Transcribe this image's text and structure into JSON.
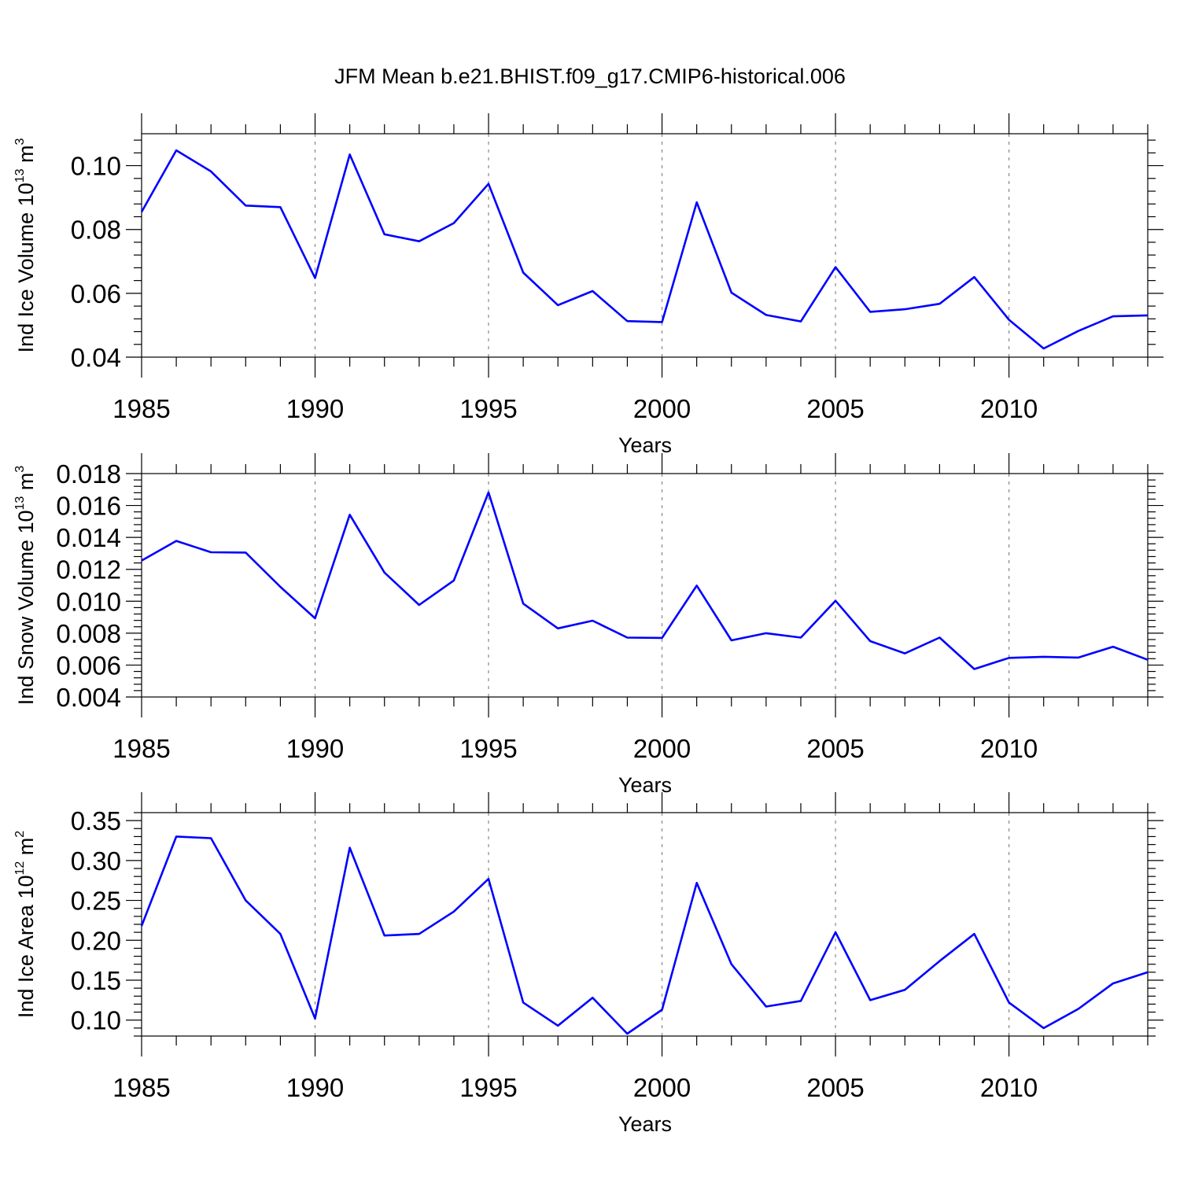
{
  "title": "JFM Mean b.e21.BHIST.f09_g17.CMIP6-historical.006",
  "colors": {
    "line": "#0000ff",
    "axis": "#000000",
    "grid": "#888888"
  },
  "chart_data": [
    {
      "type": "line",
      "ylabel_main": "Ind Ice Volume 10",
      "ylabel_exp": "13",
      "ylabel_unit": " m",
      "ylabel_unit_exp": "3",
      "xlabel": "Years",
      "xlim": [
        1985,
        2014
      ],
      "ylim": [
        0.04,
        0.11
      ],
      "x_ticks": [
        1985,
        1990,
        1995,
        2000,
        2005,
        2010
      ],
      "x_tick_labels": [
        "1985",
        "1990",
        "1995",
        "2000",
        "2005",
        "2010"
      ],
      "y_ticks": [
        0.04,
        0.06,
        0.08,
        0.1
      ],
      "y_tick_labels": [
        "0.04",
        "0.06",
        "0.08",
        "0.10"
      ],
      "x": [
        1985,
        1986,
        1987,
        1988,
        1989,
        1990,
        1991,
        1992,
        1993,
        1994,
        1995,
        1996,
        1997,
        1998,
        1999,
        2000,
        2001,
        2002,
        2003,
        2004,
        2005,
        2006,
        2007,
        2008,
        2009,
        2010,
        2011,
        2012,
        2013,
        2014
      ],
      "series": [
        {
          "name": "Ind Ice Volume",
          "values": [
            0.0855,
            0.1048,
            0.0982,
            0.0875,
            0.087,
            0.0648,
            0.1035,
            0.0785,
            0.0763,
            0.082,
            0.0943,
            0.0665,
            0.0563,
            0.0607,
            0.0513,
            0.051,
            0.0885,
            0.0602,
            0.0532,
            0.0512,
            0.0682,
            0.0542,
            0.055,
            0.0567,
            0.0651,
            0.0517,
            0.0427,
            0.0482,
            0.0528,
            0.0531
          ]
        }
      ]
    },
    {
      "type": "line",
      "ylabel_main": "Ind Snow Volume 10",
      "ylabel_exp": "13",
      "ylabel_unit": " m",
      "ylabel_unit_exp": "3",
      "xlabel": "Years",
      "xlim": [
        1985,
        2014
      ],
      "ylim": [
        0.004,
        0.018
      ],
      "x_ticks": [
        1985,
        1990,
        1995,
        2000,
        2005,
        2010
      ],
      "x_tick_labels": [
        "1985",
        "1990",
        "1995",
        "2000",
        "2005",
        "2010"
      ],
      "y_ticks": [
        0.004,
        0.006,
        0.008,
        0.01,
        0.012,
        0.014,
        0.016,
        0.018
      ],
      "y_tick_labels": [
        "0.004",
        "0.006",
        "0.008",
        "0.010",
        "0.012",
        "0.014",
        "0.016",
        "0.018"
      ],
      "x": [
        1985,
        1986,
        1987,
        1988,
        1989,
        1990,
        1991,
        1992,
        1993,
        1994,
        1995,
        1996,
        1997,
        1998,
        1999,
        2000,
        2001,
        2002,
        2003,
        2004,
        2005,
        2006,
        2007,
        2008,
        2009,
        2010,
        2011,
        2012,
        2013,
        2014
      ],
      "series": [
        {
          "name": "Ind Snow Volume",
          "values": [
            0.01255,
            0.01378,
            0.01307,
            0.01305,
            0.0109,
            0.00893,
            0.01542,
            0.0118,
            0.00977,
            0.0113,
            0.01682,
            0.00985,
            0.0083,
            0.00878,
            0.00772,
            0.0077,
            0.01098,
            0.00755,
            0.008,
            0.00772,
            0.01003,
            0.0075,
            0.00673,
            0.00772,
            0.00575,
            0.00645,
            0.00652,
            0.00647,
            0.00715,
            0.00633
          ]
        }
      ]
    },
    {
      "type": "line",
      "ylabel_main": "Ind Ice Area 10",
      "ylabel_exp": "12",
      "ylabel_unit": " m",
      "ylabel_unit_exp": "2",
      "xlabel": "Years",
      "xlim": [
        1985,
        2014
      ],
      "ylim": [
        0.08,
        0.36
      ],
      "x_ticks": [
        1985,
        1990,
        1995,
        2000,
        2005,
        2010
      ],
      "x_tick_labels": [
        "1985",
        "1990",
        "1995",
        "2000",
        "2005",
        "2010"
      ],
      "y_ticks": [
        0.1,
        0.15,
        0.2,
        0.25,
        0.3,
        0.35
      ],
      "y_tick_labels": [
        "0.10",
        "0.15",
        "0.20",
        "0.25",
        "0.30",
        "0.35"
      ],
      "x": [
        1985,
        1986,
        1987,
        1988,
        1989,
        1990,
        1991,
        1992,
        1993,
        1994,
        1995,
        1996,
        1997,
        1998,
        1999,
        2000,
        2001,
        2002,
        2003,
        2004,
        2005,
        2006,
        2007,
        2008,
        2009,
        2010,
        2011,
        2012,
        2013,
        2014
      ],
      "series": [
        {
          "name": "Ind Ice Area",
          "values": [
            0.218,
            0.33,
            0.328,
            0.25,
            0.208,
            0.102,
            0.316,
            0.206,
            0.208,
            0.236,
            0.277,
            0.122,
            0.093,
            0.128,
            0.083,
            0.113,
            0.272,
            0.17,
            0.117,
            0.124,
            0.21,
            0.125,
            0.138,
            0.174,
            0.208,
            0.122,
            0.09,
            0.114,
            0.146,
            0.16
          ]
        }
      ]
    }
  ]
}
